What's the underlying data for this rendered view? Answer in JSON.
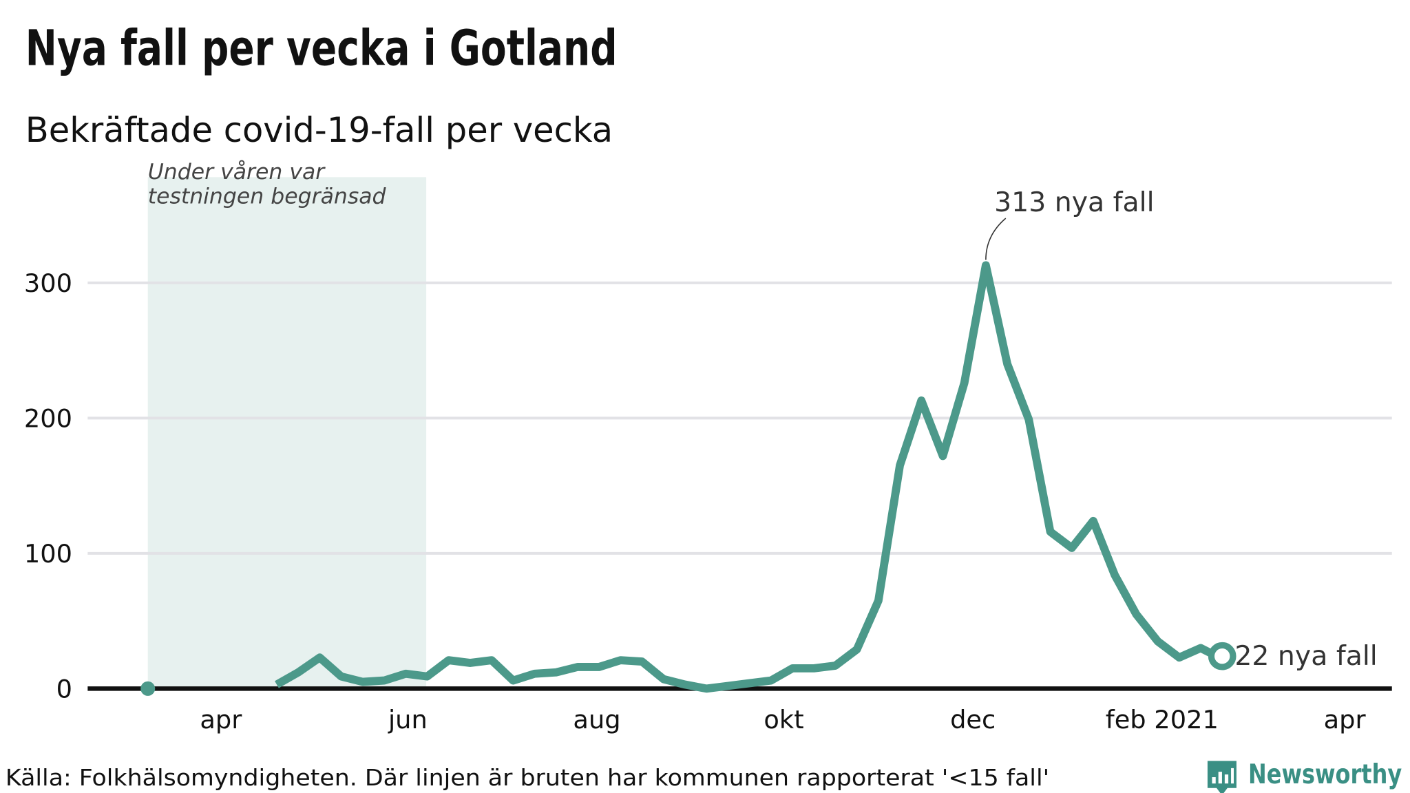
{
  "title": "Nya fall per vecka i Gotland",
  "subtitle": "Bekräftade covid-19-fall per vecka",
  "footer": "Källa: Folkhälsomyndigheten. Där linjen är bruten har kommunen rapporterat '<15 fall'",
  "brand": "Newsworthy",
  "colors": {
    "line": "#4c998a",
    "shade": "#e7f1ef",
    "brand": "#3a8f84"
  },
  "chart_data": {
    "type": "line",
    "title": "Nya fall per vecka i Gotland",
    "subtitle": "Bekräftade covid-19-fall per vecka",
    "xlabel": "",
    "ylabel": "",
    "x_unit": "week index (11 = mid-March 2020)",
    "xlim": [
      8.2,
      68.9
    ],
    "ylim": [
      0,
      380
    ],
    "grid": true,
    "y_ticks": [
      0,
      100,
      200,
      300
    ],
    "y_tick_labels": [
      "0",
      "100",
      "200",
      "300"
    ],
    "x_ticks": [
      14.4,
      23.1,
      31.9,
      40.6,
      49.4,
      58.2,
      66.7
    ],
    "x_tick_labels": [
      "apr",
      "jun",
      "aug",
      "okt",
      "dec",
      "feb 2021",
      "apr"
    ],
    "shaded_region": {
      "x": [
        11,
        24
      ],
      "label_lines": [
        "Under våren var",
        "testningen begränsad"
      ]
    },
    "annotations": [
      {
        "x": 50,
        "y": 313,
        "text": "313 nya fall"
      },
      {
        "x": 61,
        "y": 22,
        "text": "22 nya fall"
      }
    ],
    "series": [
      {
        "name": "Nya fall",
        "x": [
          11,
          12,
          13,
          14,
          15,
          16,
          17,
          18,
          19,
          20,
          21,
          22,
          23,
          24,
          25,
          26,
          27,
          28,
          29,
          30,
          31,
          32,
          33,
          34,
          35,
          36,
          37,
          38,
          39,
          40,
          41,
          42,
          43,
          44,
          45,
          46,
          47,
          48,
          49,
          50,
          51,
          52,
          53,
          54,
          55,
          56,
          57,
          58,
          59,
          60,
          61
        ],
        "values": [
          0,
          null,
          null,
          null,
          null,
          null,
          3,
          12,
          23,
          9,
          5,
          6,
          11,
          9,
          21,
          19,
          21,
          6,
          11,
          12,
          16,
          16,
          21,
          20,
          7,
          3,
          0,
          2,
          4,
          6,
          15,
          15,
          17,
          29,
          65,
          165,
          213,
          172,
          226,
          313,
          240,
          199,
          116,
          104,
          124,
          84,
          55,
          35,
          23,
          30,
          22
        ]
      }
    ]
  }
}
